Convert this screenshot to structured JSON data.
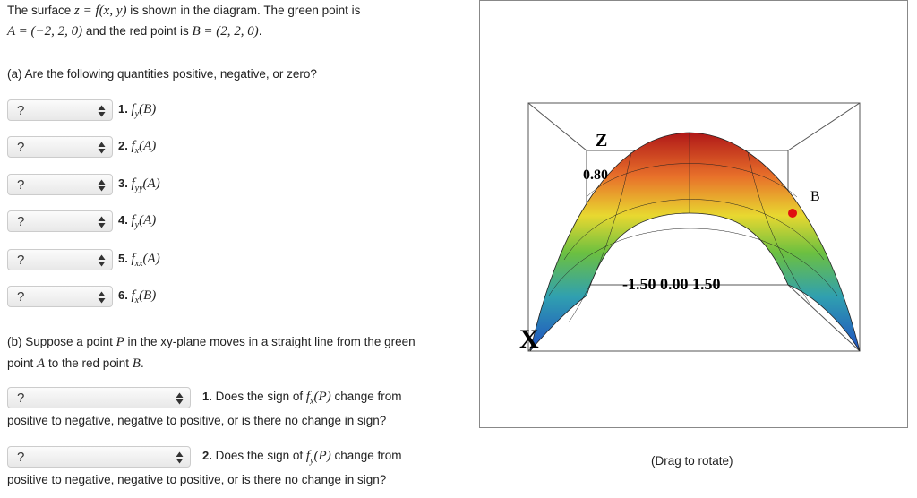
{
  "intro": {
    "line1": [
      "The surface ",
      "z = f(x, y)",
      " is shown in the diagram. The green point is"
    ],
    "line2": [
      "A = (−2, 2, 0)",
      " and the red point is ",
      "B = (2, 2, 0)",
      "."
    ]
  },
  "part_a": {
    "prompt": "(a) Are the following quantities positive, negative, or zero?",
    "items": [
      {
        "select": "?",
        "num": "1.",
        "fn": "f",
        "sub": "y",
        "arg": "(B)"
      },
      {
        "select": "?",
        "num": "2.",
        "fn": "f",
        "sub": "x",
        "arg": "(A)"
      },
      {
        "select": "?",
        "num": "3.",
        "fn": "f",
        "sub": "yy",
        "arg": "(A)"
      },
      {
        "select": "?",
        "num": "4.",
        "fn": "f",
        "sub": "y",
        "arg": "(A)"
      },
      {
        "select": "?",
        "num": "5.",
        "fn": "f",
        "sub": "xx",
        "arg": "(A)"
      },
      {
        "select": "?",
        "num": "6.",
        "fn": "f",
        "sub": "x",
        "arg": "(B)"
      }
    ]
  },
  "part_b": {
    "line1": [
      "(b) Suppose a point ",
      "P",
      " in the xy-plane moves in a straight line from the green"
    ],
    "line2": [
      "point ",
      "A",
      " to the red point ",
      "B",
      "."
    ],
    "questions": [
      {
        "select": "?",
        "num": "1.",
        "text1": " Does the sign of ",
        "fn": "f",
        "sub": "x",
        "arg": "(P)",
        "text2": " change from",
        "text3": "positive to negative, negative to positive, or is there no change in sign?"
      },
      {
        "select": "?",
        "num": "2.",
        "text1": " Does the sign of ",
        "fn": "f",
        "sub": "y",
        "arg": "(P)",
        "text2": " change from",
        "text3": "positive to negative, negative to positive, or is there no change in sign?"
      }
    ]
  },
  "diagram": {
    "axis_z": "Z",
    "z_tick": "0.80",
    "point_label": "B",
    "y_ticks": "-1.50 0.00 1.50",
    "axis_x": "X",
    "caption": "(Drag to rotate)"
  }
}
